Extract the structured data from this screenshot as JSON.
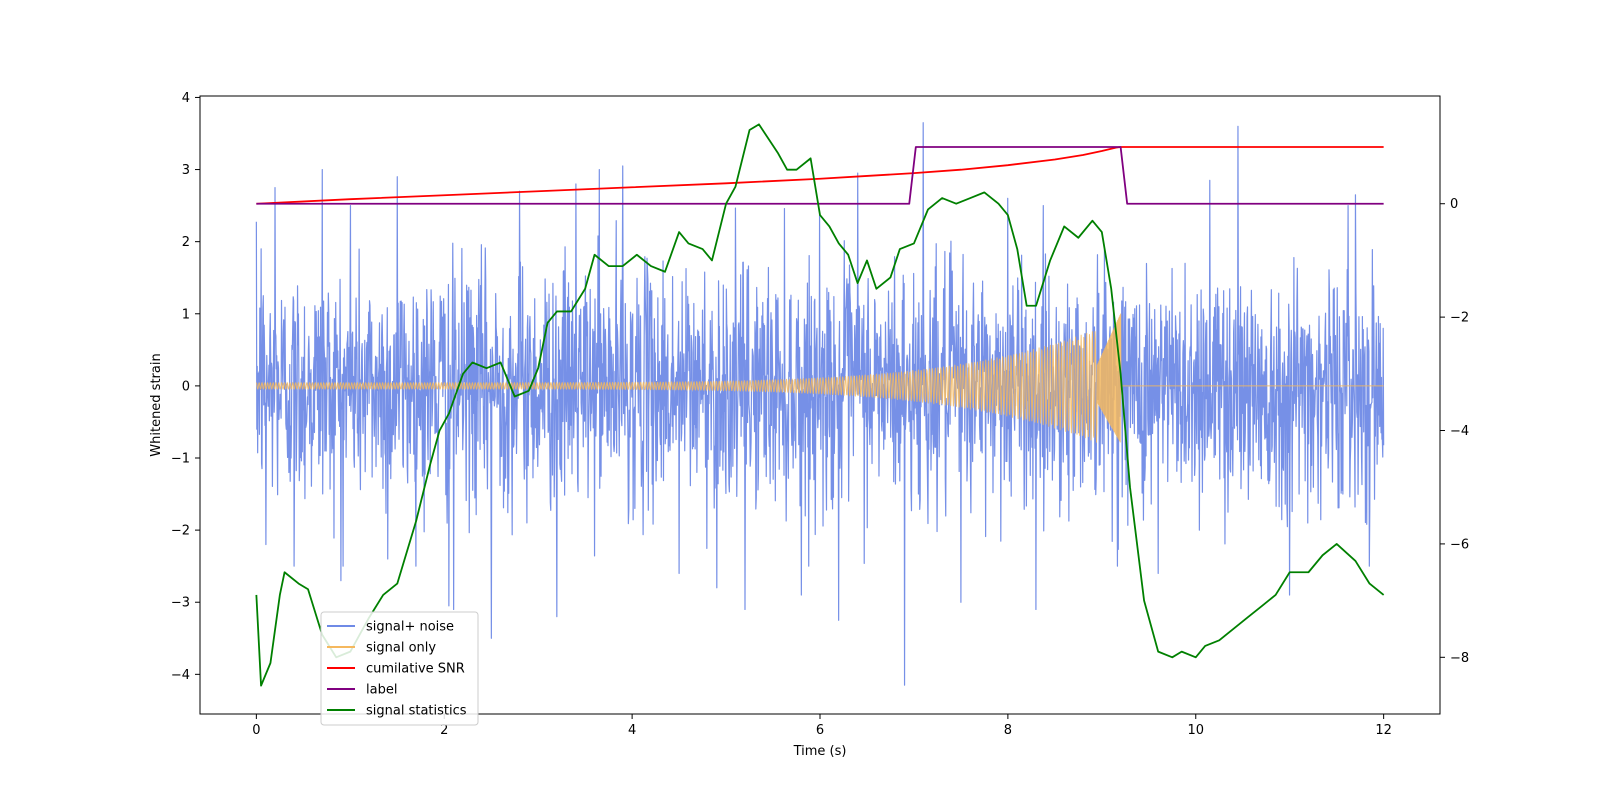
{
  "chart_data": {
    "type": "line",
    "title": "",
    "xlabel": "Time (s)",
    "ylabel": "Whitened strain",
    "y2label": "",
    "xlim": [
      -0.6,
      12.6
    ],
    "ylim": [
      -4.55,
      4.02
    ],
    "y2lim": [
      -9.0,
      1.9
    ],
    "xticks": [
      0,
      2,
      4,
      6,
      8,
      10,
      12
    ],
    "yticks": [
      -4,
      -3,
      -2,
      -1,
      0,
      1,
      2,
      3,
      4
    ],
    "y2ticks": [
      -8,
      -6,
      -4,
      -2,
      0
    ],
    "ytick_labels": [
      "−4",
      "−3",
      "−2",
      "−1",
      "0",
      "1",
      "2",
      "3",
      "4"
    ],
    "y2tick_labels": [
      "−8",
      "−6",
      "−4",
      "−2",
      "0"
    ],
    "xtick_labels": [
      "0",
      "2",
      "4",
      "6",
      "8",
      "10",
      "12"
    ],
    "grid": false,
    "legend_position": "lower-left",
    "series": [
      {
        "name": "signal+ noise",
        "color": "#6f8ae6",
        "axis": "left",
        "kind": "noise",
        "x_range": [
          0,
          12
        ],
        "spikes": [
          {
            "x": 0.05,
            "y": 1.9
          },
          {
            "x": 0.1,
            "y": -2.2
          },
          {
            "x": 0.2,
            "y": 2.75
          },
          {
            "x": 0.4,
            "y": -2.5
          },
          {
            "x": 0.7,
            "y": 3.0
          },
          {
            "x": 0.9,
            "y": -2.7
          },
          {
            "x": 1.0,
            "y": 2.5
          },
          {
            "x": 1.4,
            "y": -2.4
          },
          {
            "x": 1.5,
            "y": 2.9
          },
          {
            "x": 2.05,
            "y": -3.05
          },
          {
            "x": 2.1,
            "y": -3.1
          },
          {
            "x": 2.5,
            "y": -3.5
          },
          {
            "x": 2.8,
            "y": 2.7
          },
          {
            "x": 3.2,
            "y": -3.2
          },
          {
            "x": 3.4,
            "y": 2.8
          },
          {
            "x": 3.65,
            "y": 3.0
          },
          {
            "x": 3.9,
            "y": 3.05
          },
          {
            "x": 4.5,
            "y": -2.6
          },
          {
            "x": 4.9,
            "y": -2.8
          },
          {
            "x": 5.2,
            "y": -3.1
          },
          {
            "x": 5.8,
            "y": -2.9
          },
          {
            "x": 6.2,
            "y": -3.25
          },
          {
            "x": 6.4,
            "y": 2.95
          },
          {
            "x": 6.9,
            "y": -4.15
          },
          {
            "x": 7.1,
            "y": 3.65
          },
          {
            "x": 7.5,
            "y": -3.0
          },
          {
            "x": 8.0,
            "y": 2.6
          },
          {
            "x": 8.3,
            "y": -3.1
          },
          {
            "x": 9.6,
            "y": -2.6
          },
          {
            "x": 10.15,
            "y": 2.85
          },
          {
            "x": 10.45,
            "y": 3.6
          },
          {
            "x": 11.0,
            "y": -2.9
          },
          {
            "x": 11.7,
            "y": 2.65
          }
        ]
      },
      {
        "name": "signal only",
        "color": "#f5b85e",
        "axis": "left",
        "kind": "chirp",
        "t_end": 9.2,
        "amp_start": 0.05,
        "amp_end": 1.02
      },
      {
        "name": "cumilative SNR",
        "color": "#ff0000",
        "axis": "right",
        "x": [
          0,
          1,
          2,
          3,
          4,
          5,
          6,
          6.5,
          7,
          7.5,
          8,
          8.5,
          8.8,
          9.0,
          9.1,
          9.15,
          9.2,
          12
        ],
        "y": [
          0.0,
          0.08,
          0.15,
          0.22,
          0.29,
          0.36,
          0.44,
          0.49,
          0.54,
          0.6,
          0.68,
          0.78,
          0.86,
          0.93,
          0.97,
          0.99,
          1.0,
          1.0
        ]
      },
      {
        "name": "label",
        "color": "#800080",
        "axis": "right",
        "x": [
          0,
          6.95,
          7.02,
          9.2,
          9.27,
          12
        ],
        "y": [
          0,
          0,
          1,
          1,
          0,
          0
        ]
      },
      {
        "name": "signal statistics",
        "color": "#008000",
        "axis": "right",
        "x": [
          0,
          0.05,
          0.15,
          0.25,
          0.3,
          0.45,
          0.55,
          0.7,
          0.85,
          1.0,
          1.1,
          1.2,
          1.35,
          1.5,
          1.7,
          1.85,
          1.95,
          2.05,
          2.2,
          2.3,
          2.45,
          2.6,
          2.75,
          2.9,
          3.0,
          3.1,
          3.2,
          3.35,
          3.5,
          3.6,
          3.75,
          3.9,
          4.05,
          4.2,
          4.35,
          4.5,
          4.6,
          4.75,
          4.85,
          5.0,
          5.1,
          5.25,
          5.35,
          5.55,
          5.65,
          5.75,
          5.9,
          6.0,
          6.1,
          6.2,
          6.3,
          6.4,
          6.5,
          6.6,
          6.75,
          6.85,
          7.0,
          7.15,
          7.3,
          7.45,
          7.6,
          7.75,
          7.9,
          8.0,
          8.1,
          8.2,
          8.3,
          8.45,
          8.6,
          8.75,
          8.9,
          9.0,
          9.1,
          9.2,
          9.3,
          9.45,
          9.6,
          9.75,
          9.85,
          10.0,
          10.1,
          10.25,
          10.4,
          10.55,
          10.7,
          10.85,
          11.0,
          11.2,
          11.35,
          11.5,
          11.7,
          11.85,
          12.0
        ],
        "y": [
          -6.9,
          -8.5,
          -8.1,
          -6.9,
          -6.5,
          -6.7,
          -6.8,
          -7.6,
          -8.0,
          -7.9,
          -7.6,
          -7.3,
          -6.9,
          -6.7,
          -5.6,
          -4.6,
          -4.0,
          -3.7,
          -3.0,
          -2.8,
          -2.9,
          -2.8,
          -3.4,
          -3.3,
          -2.9,
          -2.1,
          -1.9,
          -1.9,
          -1.5,
          -0.9,
          -1.1,
          -1.1,
          -0.9,
          -1.1,
          -1.2,
          -0.5,
          -0.7,
          -0.8,
          -1.0,
          0.0,
          0.3,
          1.3,
          1.4,
          0.9,
          0.6,
          0.6,
          0.8,
          -0.2,
          -0.4,
          -0.7,
          -0.9,
          -1.4,
          -1.0,
          -1.5,
          -1.3,
          -0.8,
          -0.7,
          -0.1,
          0.1,
          0.0,
          0.1,
          0.2,
          0.0,
          -0.2,
          -0.8,
          -1.8,
          -1.8,
          -1.0,
          -0.4,
          -0.6,
          -0.3,
          -0.5,
          -1.5,
          -3.0,
          -5.0,
          -7.0,
          -7.9,
          -8.0,
          -7.9,
          -8.0,
          -7.8,
          -7.7,
          -7.5,
          -7.3,
          -7.1,
          -6.9,
          -6.5,
          -6.5,
          -6.2,
          -6.0,
          -6.3,
          -6.7,
          -6.9
        ]
      }
    ]
  }
}
